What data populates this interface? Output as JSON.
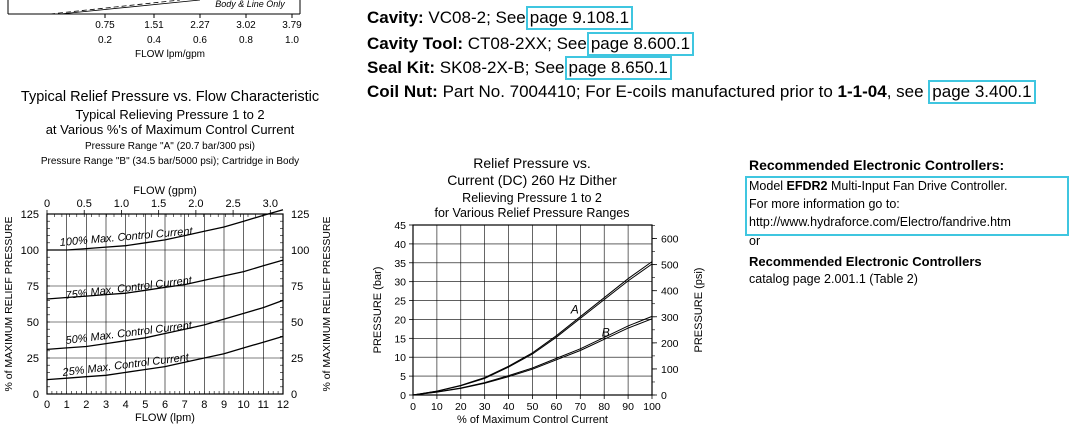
{
  "top_chart": {
    "x_ticks_lpm": [
      "0.75",
      "1.51",
      "2.27",
      "3.02",
      "3.79"
    ],
    "x_ticks_gpm": [
      "0.2",
      "0.4",
      "0.6",
      "0.8",
      "1.0"
    ],
    "x_label": "FLOW lpm/gpm",
    "legend_fragment": "Body & Line Only"
  },
  "specs": [
    {
      "label": "Cavity:",
      "text": "VC08-2; See",
      "link": "page 9.108.1"
    },
    {
      "label": "Cavity Tool:",
      "text": "CT08-2XX; See",
      "link": "page 8.600.1"
    },
    {
      "label": "Seal Kit:",
      "text": "SK08-2X-B; See",
      "link": "page 8.650.1"
    },
    {
      "label": "Coil Nut:",
      "text": "Part No. 7004410; For E-coils manufactured prior to",
      "bold_text": "1-1-04",
      "text2": ", see",
      "link": "page 3.400.1"
    }
  ],
  "relief_chart": {
    "title": "Typical Relief Pressure vs. Flow Characteristic",
    "subtitle1": "Typical Relieving Pressure 1 to 2",
    "subtitle2": "at Various %'s of Maximum Control Current",
    "range_a": "Pressure Range \"A\" (20.7 bar/300 psi)",
    "range_b": "Pressure Range \"B\" (34.5 bar/5000 psi); Cartridge in Body",
    "top_axis_label": "FLOW (gpm)",
    "bottom_axis_label": "FLOW (lpm)",
    "left_axis_label": "% of MAXIMUM RELIEF PRESSURE",
    "right_axis_label": "% of MAXIMUM RELIEF PRESSURE",
    "curve_labels": [
      "100% Max. Control Current",
      "75% Max. Control Current",
      "50% Max. Control Current",
      "25% Max. Control Current"
    ]
  },
  "current_chart": {
    "title1": "Relief Pressure vs.",
    "title2": "Current (DC) 260 Hz Dither",
    "title3": "Relieving Pressure 1 to 2",
    "title4": "for Various Relief Pressure Ranges",
    "x_label": "% of Maximum Control Current",
    "left_label": "PRESSURE (bar)",
    "right_label": "PRESSURE (psi)",
    "curve_a": "A",
    "curve_b": "B"
  },
  "controllers": {
    "heading": "Recommended Electronic Controllers:",
    "model_prefix": "Model",
    "model_name": "EFDR2",
    "model_desc": "Multi-Input Fan Drive Controller.",
    "more_info": "For more information go to:",
    "url": "http://www.hydraforce.com/Electro/fandrive.htm",
    "or": "or",
    "heading2": "Recommended Electronic Controllers",
    "catalog": "catalog page 2.001.1 (Table 2)"
  },
  "chart_data": [
    {
      "type": "line",
      "title": "Typical Relief Pressure vs. Flow Characteristic",
      "xlabel": "FLOW (lpm)",
      "ylabel": "% of MAXIMUM RELIEF PRESSURE",
      "xlim": [
        0,
        12
      ],
      "ylim": [
        0,
        125
      ],
      "x_ticks": [
        0,
        1,
        2,
        3,
        4,
        5,
        6,
        7,
        8,
        9,
        10,
        11,
        12
      ],
      "y_ticks": [
        0,
        25,
        50,
        75,
        100,
        125
      ],
      "secondary_x_label": "FLOW (gpm)",
      "secondary_x_ticks": [
        "0",
        "0.5",
        "1.0",
        "1.5",
        "2.0",
        "2.5",
        "3.0"
      ],
      "x": [
        0,
        1,
        2,
        3,
        4,
        5,
        6,
        7,
        8,
        9,
        10,
        11,
        12
      ],
      "series": [
        {
          "name": "100% Max. Control Current",
          "values": [
            100,
            100,
            101,
            102,
            103,
            105,
            107,
            110,
            113,
            116,
            120,
            124,
            128
          ]
        },
        {
          "name": "75% Max. Control Current",
          "values": [
            66,
            67,
            68,
            69,
            70,
            72,
            74,
            76,
            79,
            82,
            85,
            89,
            93
          ]
        },
        {
          "name": "50% Max. Control Current",
          "values": [
            31,
            32,
            33,
            35,
            37,
            39,
            42,
            45,
            48,
            52,
            56,
            60,
            65
          ]
        },
        {
          "name": "25% Max. Control Current",
          "values": [
            10,
            11,
            12,
            13,
            15,
            17,
            19,
            22,
            25,
            28,
            32,
            36,
            40
          ]
        }
      ],
      "grid": true
    },
    {
      "type": "line",
      "title": "Relief Pressure vs. Current (DC) 260 Hz Dither",
      "xlabel": "% of Maximum Control Current",
      "ylabel": "PRESSURE (bar)",
      "y2label": "PRESSURE (psi)",
      "xlim": [
        0,
        100
      ],
      "ylim": [
        0,
        45
      ],
      "y2lim": [
        0,
        652
      ],
      "x_ticks": [
        0,
        10,
        20,
        30,
        40,
        50,
        60,
        70,
        80,
        90,
        100
      ],
      "y_ticks": [
        0,
        5,
        10,
        15,
        20,
        25,
        30,
        35,
        40,
        45
      ],
      "y2_ticks": [
        0,
        100,
        200,
        300,
        400,
        500,
        600
      ],
      "x": [
        0,
        10,
        20,
        30,
        40,
        50,
        60,
        70,
        80,
        90,
        100
      ],
      "series": [
        {
          "name": "A",
          "values": [
            0,
            1,
            2.5,
            4.5,
            7.5,
            11,
            15.5,
            20.5,
            25.5,
            30.5,
            35
          ]
        },
        {
          "name": "B",
          "values": [
            0,
            0.8,
            1.8,
            3.2,
            5,
            7,
            9.5,
            12,
            15,
            18,
            20.5
          ]
        }
      ],
      "grid": true
    }
  ]
}
